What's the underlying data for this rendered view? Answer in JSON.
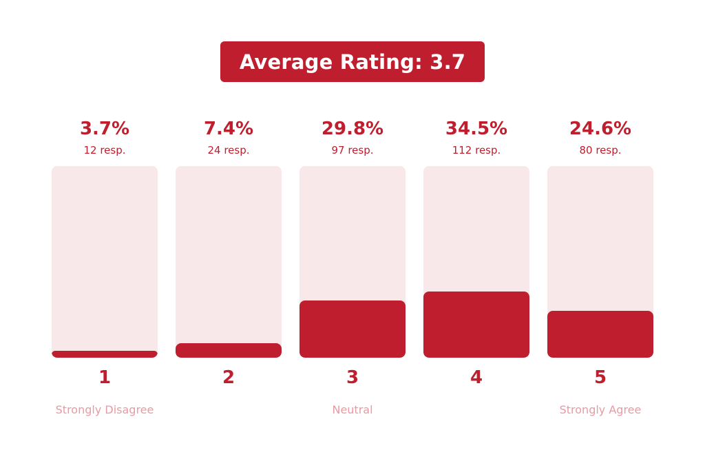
{
  "title": "Average Rating: 3.7",
  "colors": {
    "accent": "#be1e2d",
    "track": "#f8e8e9",
    "label_muted": "#e89aa1"
  },
  "chart_data": {
    "type": "bar",
    "categories": [
      "1",
      "2",
      "3",
      "4",
      "5"
    ],
    "values": [
      3.7,
      7.4,
      29.8,
      34.5,
      24.6
    ],
    "value_unit": "%",
    "ylim": [
      0,
      100
    ],
    "percent_labels": [
      "3.7%",
      "7.4%",
      "29.8%",
      "34.5%",
      "24.6%"
    ],
    "responses": [
      12,
      24,
      97,
      112,
      80
    ],
    "response_labels": [
      "12 resp.",
      "24 resp.",
      "97 resp.",
      "112 resp.",
      "80 resp."
    ],
    "scale_labels": [
      "Strongly Disagree",
      "",
      "Neutral",
      "",
      "Strongly Agree"
    ],
    "title": "Average Rating: 3.7",
    "grid": false,
    "legend": "none"
  }
}
